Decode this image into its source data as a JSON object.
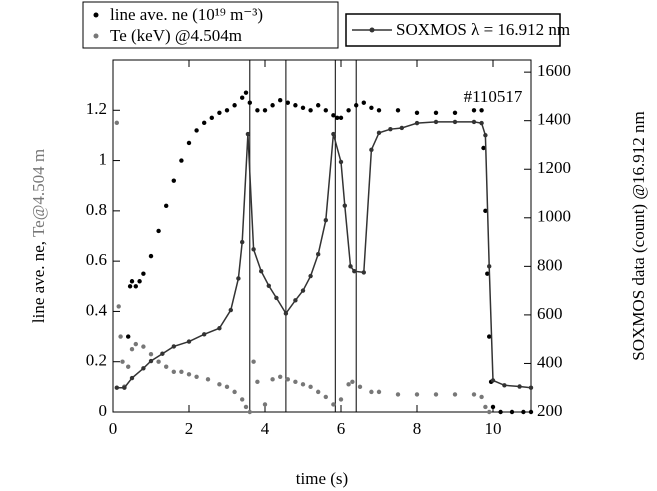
{
  "chart_data": {
    "type": "scatter",
    "annotation": "#110517",
    "xlabel": "time (s)",
    "ylabel": [
      "line ave. ne, ",
      "Te@4.504 m"
    ],
    "y2label": "SOXMOS data (count) @16.912 nm",
    "xlim": [
      0,
      11
    ],
    "xticks": [
      0,
      2,
      4,
      6,
      8,
      10
    ],
    "ylim": [
      0,
      1.4
    ],
    "yticks": [
      0,
      0.2,
      0.4,
      0.6,
      0.8,
      1,
      1.2
    ],
    "y2lim": [
      200,
      1650
    ],
    "y2ticks": [
      200,
      400,
      600,
      800,
      1000,
      1200,
      1400,
      1600
    ],
    "vlines": [
      3.6,
      4.55,
      5.85,
      6.4
    ],
    "series": [
      {
        "name": "line ave. ne (10¹⁹ m⁻³)",
        "color": "#000000",
        "style": "dots",
        "x": [
          0.3,
          0.4,
          0.45,
          0.5,
          0.6,
          0.7,
          0.8,
          1.0,
          1.2,
          1.4,
          1.6,
          1.8,
          2.0,
          2.2,
          2.4,
          2.6,
          2.8,
          3.0,
          3.2,
          3.4,
          3.5,
          3.6,
          3.8,
          4.0,
          4.2,
          4.4,
          4.6,
          4.8,
          5.0,
          5.2,
          5.4,
          5.6,
          5.8,
          5.9,
          6.0,
          6.2,
          6.4,
          6.6,
          6.8,
          7.0,
          7.5,
          8.0,
          8.5,
          9.0,
          9.5,
          9.7,
          9.75,
          9.8,
          9.85,
          9.9,
          9.95,
          10.0,
          10.2,
          10.5,
          10.8,
          11.0
        ],
        "values": [
          0.1,
          0.3,
          0.5,
          0.52,
          0.5,
          0.52,
          0.55,
          0.62,
          0.72,
          0.82,
          0.92,
          1.0,
          1.07,
          1.12,
          1.15,
          1.17,
          1.19,
          1.2,
          1.22,
          1.25,
          1.27,
          1.23,
          1.2,
          1.2,
          1.22,
          1.24,
          1.23,
          1.22,
          1.21,
          1.2,
          1.22,
          1.2,
          1.18,
          1.17,
          1.17,
          1.2,
          1.22,
          1.23,
          1.21,
          1.2,
          1.2,
          1.19,
          1.19,
          1.19,
          1.2,
          1.2,
          1.05,
          0.8,
          0.55,
          0.3,
          0.12,
          0.02,
          0,
          0,
          0,
          0
        ]
      },
      {
        "name": "Te (keV) @4.504m",
        "color": "#777777",
        "style": "dots",
        "x": [
          0.1,
          0.15,
          0.2,
          0.25,
          0.3,
          0.4,
          0.5,
          0.6,
          0.8,
          1.0,
          1.2,
          1.4,
          1.6,
          1.8,
          2.0,
          2.2,
          2.5,
          2.8,
          3.0,
          3.2,
          3.4,
          3.5,
          3.6,
          3.7,
          3.8,
          4.0,
          4.2,
          4.4,
          4.6,
          4.8,
          5.0,
          5.2,
          5.4,
          5.6,
          5.8,
          6.0,
          6.2,
          6.3,
          6.5,
          6.8,
          7.0,
          7.5,
          8.0,
          8.5,
          9.0,
          9.5,
          9.7,
          9.8,
          9.9
        ],
        "values": [
          1.15,
          0.42,
          0.3,
          0.2,
          0.1,
          0.18,
          0.25,
          0.27,
          0.26,
          0.23,
          0.2,
          0.18,
          0.16,
          0.16,
          0.15,
          0.14,
          0.13,
          0.11,
          0.1,
          0.08,
          0.05,
          0.02,
          0.0,
          0.2,
          0.12,
          0.03,
          0.13,
          0.14,
          0.13,
          0.12,
          0.11,
          0.1,
          0.08,
          0.06,
          0.03,
          0.05,
          0.11,
          0.12,
          0.1,
          0.08,
          0.08,
          0.07,
          0.07,
          0.07,
          0.07,
          0.07,
          0.06,
          0.02,
          0.0
        ]
      },
      {
        "name": "SOXMOS λ = 16.912 nm",
        "color": "#333333",
        "style": "line",
        "axis": "y2",
        "x": [
          0.1,
          0.3,
          0.5,
          0.8,
          1.0,
          1.3,
          1.6,
          2.0,
          2.4,
          2.8,
          3.1,
          3.3,
          3.4,
          3.55,
          3.7,
          3.9,
          4.1,
          4.3,
          4.55,
          4.8,
          5.0,
          5.2,
          5.4,
          5.6,
          5.8,
          6.0,
          6.1,
          6.25,
          6.35,
          6.6,
          6.8,
          7.0,
          7.3,
          7.6,
          8.0,
          8.5,
          9.0,
          9.5,
          9.7,
          9.8,
          9.9,
          10.0,
          10.3,
          10.7,
          11.0
        ],
        "values": [
          300,
          300,
          340,
          380,
          410,
          440,
          470,
          490,
          520,
          545,
          620,
          750,
          900,
          1345,
          870,
          780,
          720,
          670,
          606,
          660,
          700,
          760,
          850,
          990,
          1345,
          1230,
          1050,
          800,
          780,
          775,
          1280,
          1350,
          1365,
          1370,
          1390,
          1395,
          1395,
          1395,
          1390,
          1340,
          800,
          330,
          310,
          305,
          300
        ]
      }
    ]
  }
}
